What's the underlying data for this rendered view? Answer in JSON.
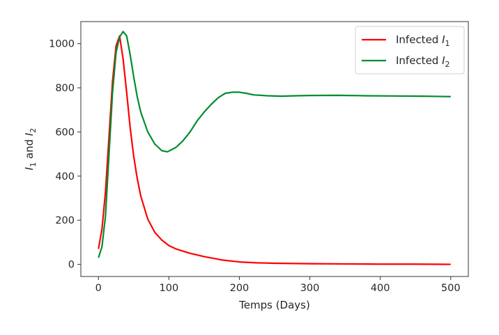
{
  "chart_data": {
    "type": "line",
    "title": "",
    "xlabel": "Temps (Days)",
    "ylabel": {
      "prefix": "I",
      "sub1": "1",
      "mid": " and ",
      "prefix2": "I",
      "sub2": "2"
    },
    "xlim": [
      -25,
      525
    ],
    "ylim": [
      -55,
      1100
    ],
    "xticks": [
      0,
      100,
      200,
      300,
      400,
      500
    ],
    "yticks": [
      0,
      200,
      400,
      600,
      800,
      1000
    ],
    "grid": false,
    "legend_position": "top-right",
    "series": [
      {
        "name": "Infected I1",
        "legend_prefix": "Infected ",
        "legend_var": "I",
        "legend_sub": "1",
        "color": "#ff0000",
        "x": [
          0,
          5,
          10,
          15,
          20,
          25,
          30,
          35,
          40,
          45,
          50,
          55,
          60,
          70,
          80,
          90,
          100,
          110,
          120,
          130,
          150,
          175,
          200,
          225,
          250,
          300,
          350,
          400,
          450,
          500
        ],
        "y": [
          70,
          160,
          330,
          580,
          830,
          990,
          1035,
          930,
          780,
          620,
          490,
          390,
          310,
          205,
          145,
          110,
          85,
          70,
          60,
          50,
          35,
          20,
          11,
          7,
          5,
          3,
          2,
          1,
          1,
          0
        ]
      },
      {
        "name": "Infected I2",
        "legend_prefix": "Infected ",
        "legend_var": "I",
        "legend_sub": "2",
        "color": "#008c2e",
        "x": [
          0,
          5,
          10,
          15,
          20,
          25,
          30,
          35,
          40,
          45,
          50,
          55,
          60,
          70,
          80,
          90,
          98,
          110,
          120,
          130,
          140,
          150,
          160,
          170,
          180,
          190,
          200,
          210,
          220,
          240,
          260,
          280,
          300,
          340,
          380,
          420,
          460,
          500
        ],
        "y": [
          30,
          80,
          220,
          500,
          780,
          960,
          1030,
          1055,
          1035,
          950,
          850,
          760,
          690,
          600,
          545,
          515,
          510,
          530,
          560,
          600,
          650,
          690,
          725,
          755,
          775,
          780,
          780,
          775,
          768,
          764,
          762,
          764,
          765,
          766,
          764,
          763,
          762,
          760
        ]
      }
    ]
  }
}
